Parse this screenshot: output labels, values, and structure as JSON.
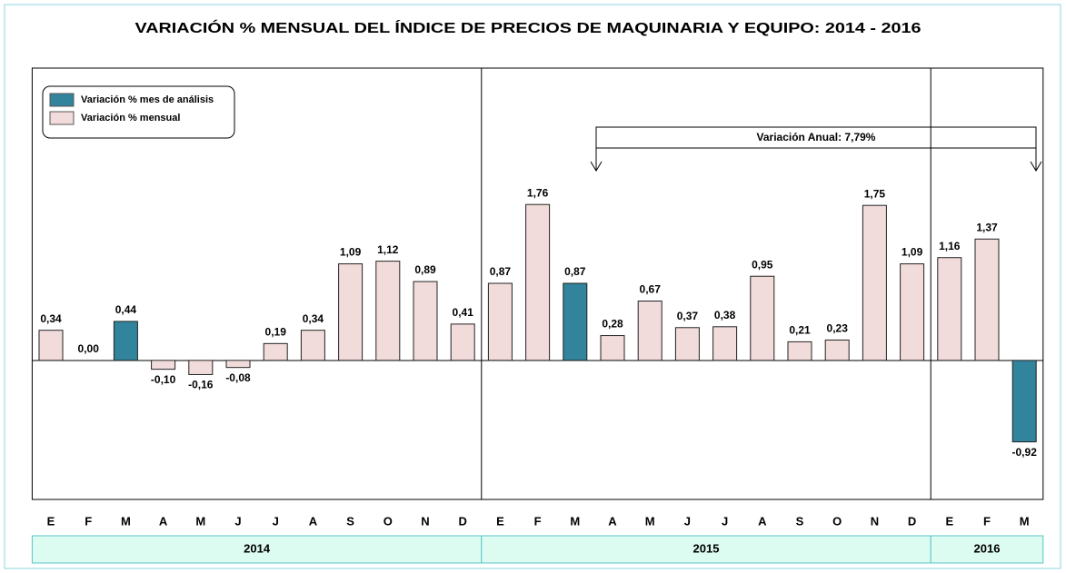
{
  "chart_data": {
    "type": "bar",
    "title": "VARIACIÓN % MENSUAL DEL ÍNDICE DE PRECIOS DE MAQUINARIA Y EQUIPO: 2014 - 2016",
    "groups": [
      {
        "label": "2014",
        "categories": [
          "E",
          "F",
          "M",
          "A",
          "M",
          "J",
          "J",
          "A",
          "S",
          "O",
          "N",
          "D"
        ]
      },
      {
        "label": "2015",
        "categories": [
          "E",
          "F",
          "M",
          "A",
          "M",
          "J",
          "J",
          "A",
          "S",
          "O",
          "N",
          "D"
        ]
      },
      {
        "label": "2016",
        "categories": [
          "E",
          "F",
          "M"
        ]
      }
    ],
    "series": [
      {
        "name": "Variación % mes de análisis",
        "color": "#31849b",
        "values": [
          null,
          null,
          0.44,
          null,
          null,
          null,
          null,
          null,
          null,
          null,
          null,
          null,
          null,
          null,
          0.87,
          null,
          null,
          null,
          null,
          null,
          null,
          null,
          null,
          null,
          null,
          null,
          -0.92
        ],
        "value_labels": [
          null,
          null,
          "0,44",
          null,
          null,
          null,
          null,
          null,
          null,
          null,
          null,
          null,
          null,
          null,
          "0,87",
          null,
          null,
          null,
          null,
          null,
          null,
          null,
          null,
          null,
          null,
          null,
          "-0,92"
        ]
      },
      {
        "name": "Variación % mensual",
        "color": "#f2dcdb",
        "values": [
          0.34,
          0.0,
          null,
          -0.1,
          -0.16,
          -0.08,
          0.19,
          0.34,
          1.09,
          1.12,
          0.89,
          0.41,
          0.87,
          1.76,
          null,
          0.28,
          0.67,
          0.37,
          0.38,
          0.95,
          0.21,
          0.23,
          1.75,
          1.09,
          1.16,
          1.37,
          null
        ],
        "value_labels": [
          "0,34",
          "0,00",
          null,
          "-0,10",
          "-0,16",
          "-0,08",
          "0,19",
          "0,34",
          "1,09",
          "1,12",
          "0,89",
          "0,41",
          "0,87",
          "1,76",
          null,
          "0,28",
          "0,67",
          "0,37",
          "0,38",
          "0,95",
          "0,21",
          "0,23",
          "1,75",
          "1,09",
          "1,16",
          "1,37",
          null
        ]
      }
    ],
    "annotation": "Variación Anual: 7,79%",
    "ylim": [
      -1.57,
      3.3
    ]
  }
}
